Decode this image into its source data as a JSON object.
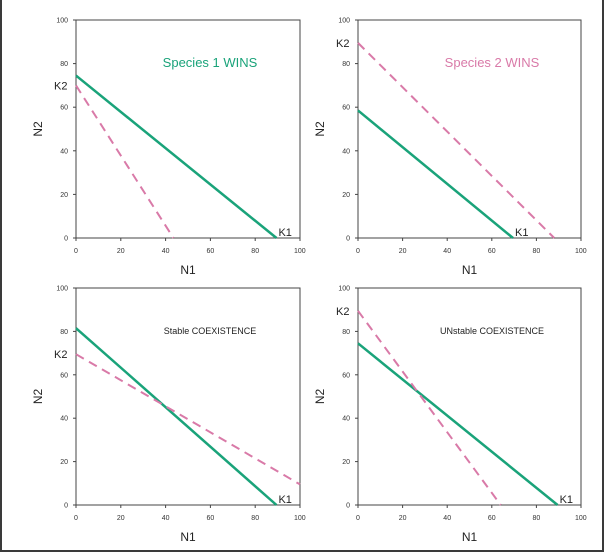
{
  "charts": [
    {
      "type": "line",
      "annotation": "Species 1 WINS",
      "annotation_color": "#1aa37a",
      "xlabel": "N1",
      "ylabel": "N2",
      "xlim": [
        0,
        100
      ],
      "ylim": [
        0,
        100
      ],
      "xticks": [
        0,
        20,
        40,
        60,
        80,
        100
      ],
      "yticks": [
        0,
        20,
        40,
        60,
        80,
        100
      ],
      "series": [
        {
          "style": "solid",
          "color": "#1aa37a",
          "points": [
            [
              0,
              74.5
            ],
            [
              89.5,
              0
            ]
          ]
        },
        {
          "style": "dashed",
          "color": "#d97aa8",
          "points": [
            [
              0,
              70
            ],
            [
              43.5,
              0
            ]
          ]
        }
      ],
      "k1": {
        "label": "K1",
        "value": 89.5
      },
      "k2": {
        "label": "K2",
        "value": 70
      }
    },
    {
      "type": "line",
      "annotation": "Species 2 WINS",
      "annotation_color": "#d97aa8",
      "xlabel": "N1",
      "ylabel": "N2",
      "xlim": [
        0,
        100
      ],
      "ylim": [
        0,
        100
      ],
      "xticks": [
        0,
        20,
        40,
        60,
        80,
        100
      ],
      "yticks": [
        0,
        20,
        40,
        60,
        80,
        100
      ],
      "series": [
        {
          "style": "solid",
          "color": "#1aa37a",
          "points": [
            [
              0,
              58.5
            ],
            [
              69.5,
              0
            ]
          ]
        },
        {
          "style": "dashed",
          "color": "#d97aa8",
          "points": [
            [
              0,
              89.5
            ],
            [
              88,
              0
            ]
          ]
        }
      ],
      "k1": {
        "label": "K1",
        "value": 69.5
      },
      "k2": {
        "label": "K2",
        "value": 89.5
      }
    },
    {
      "type": "line",
      "annotation": "Stable COEXISTENCE",
      "annotation_color": "#222222",
      "xlabel": "N1",
      "ylabel": "N2",
      "xlim": [
        0,
        100
      ],
      "ylim": [
        0,
        100
      ],
      "xticks": [
        0,
        20,
        40,
        60,
        80,
        100
      ],
      "yticks": [
        0,
        20,
        40,
        60,
        80,
        100
      ],
      "series": [
        {
          "style": "solid",
          "color": "#1aa37a",
          "points": [
            [
              0,
              81.5
            ],
            [
              89.5,
              0
            ]
          ]
        },
        {
          "style": "dashed",
          "color": "#d97aa8",
          "points": [
            [
              0,
              69.5
            ],
            [
              100,
              9.5
            ]
          ]
        }
      ],
      "k1": {
        "label": "K1",
        "value": 89.5
      },
      "k2": {
        "label": "K2",
        "value": 69.5
      }
    },
    {
      "type": "line",
      "annotation": "UNstable COEXISTENCE",
      "annotation_color": "#222222",
      "xlabel": "N1",
      "ylabel": "N2",
      "xlim": [
        0,
        100
      ],
      "ylim": [
        0,
        100
      ],
      "xticks": [
        0,
        20,
        40,
        60,
        80,
        100
      ],
      "yticks": [
        0,
        20,
        40,
        60,
        80,
        100
      ],
      "series": [
        {
          "style": "solid",
          "color": "#1aa37a",
          "points": [
            [
              0,
              74.5
            ],
            [
              89.5,
              0
            ]
          ]
        },
        {
          "style": "dashed",
          "color": "#d97aa8",
          "points": [
            [
              0,
              89.5
            ],
            [
              64,
              0
            ]
          ]
        }
      ],
      "k1": {
        "label": "K1",
        "value": 89.5
      },
      "k2": {
        "label": "K2",
        "value": 89.5
      }
    }
  ]
}
